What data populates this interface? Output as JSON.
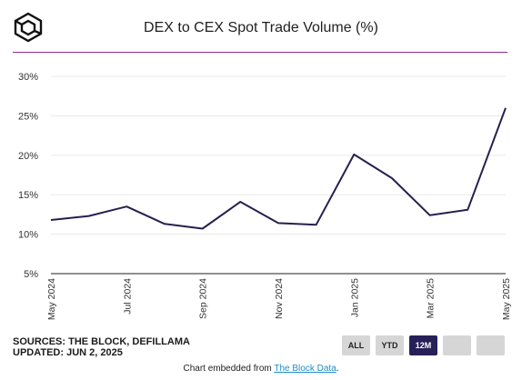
{
  "header": {
    "title": "DEX to CEX Spot Trade Volume (%)"
  },
  "logo": {
    "icon": "the-block-cube-logo"
  },
  "chart_data": {
    "type": "line",
    "title": "DEX to CEX Spot Trade Volume (%)",
    "xlabel": "",
    "ylabel": "",
    "x": [
      "May 2024",
      "Jun 2024",
      "Jul 2024",
      "Aug 2024",
      "Sep 2024",
      "Oct 2024",
      "Nov 2024",
      "Dec 2024",
      "Jan 2025",
      "Feb 2025",
      "Mar 2025",
      "Apr 2025",
      "May 2025"
    ],
    "x_tick_labels": [
      "May 2024",
      "Jul 2024",
      "Sep 2024",
      "Nov 2024",
      "Jan 2025",
      "Mar 2025",
      "May 2025"
    ],
    "series": [
      {
        "values": [
          11.8,
          12.3,
          13.5,
          11.3,
          10.7,
          14.1,
          11.4,
          11.2,
          20.1,
          17.1,
          12.4,
          13.1,
          26.0
        ]
      }
    ],
    "ylim": [
      5,
      30
    ],
    "y_ticks": [
      "5%",
      "10%",
      "15%",
      "20%",
      "25%",
      "30%"
    ],
    "grid": true,
    "color": "#26204f"
  },
  "sources": {
    "line1": "SOURCES: THE BLOCK, DEFILLAMA",
    "line2": "UPDATED: JUN 2, 2025"
  },
  "range_buttons": [
    "ALL",
    "YTD",
    "12M",
    "",
    ""
  ],
  "active_range": "12M",
  "footer": {
    "prefix": "Chart embedded from ",
    "link": "The Block Data",
    "suffix": "."
  }
}
